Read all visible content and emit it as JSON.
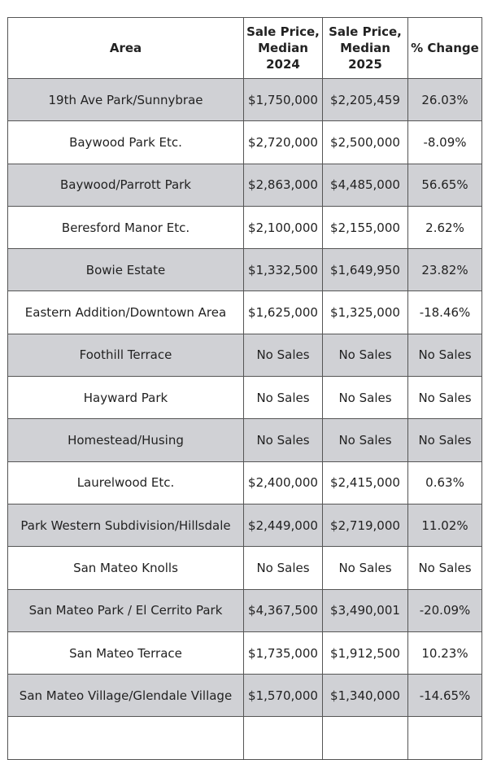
{
  "headers": [
    "Area",
    "Sale Price, Median 2024",
    "Sale Price, Median 2025",
    "% Change"
  ],
  "header_lines": [
    [
      "Area"
    ],
    [
      "Sale Price,",
      "Median",
      "2024"
    ],
    [
      "Sale Price,",
      "Median",
      "2025"
    ],
    [
      "% Change"
    ]
  ],
  "rows": [
    [
      "19th Ave Park/Sunnybrae",
      "$1,750,000",
      "$2,205,459",
      "26.03%"
    ],
    [
      "Baywood Park Etc.",
      "$2,720,000",
      "$2,500,000",
      "-8.09%"
    ],
    [
      "Baywood/Parrott Park",
      "$2,863,000",
      "$4,485,000",
      "56.65%"
    ],
    [
      "Beresford Manor Etc.",
      "$2,100,000",
      "$2,155,000",
      "2.62%"
    ],
    [
      "Bowie Estate",
      "$1,332,500",
      "$1,649,950",
      "23.82%"
    ],
    [
      "Eastern Addition/Downtown Area",
      "$1,625,000",
      "$1,325,000",
      "-18.46%"
    ],
    [
      "Foothill Terrace",
      "No Sales",
      "No Sales",
      "No Sales"
    ],
    [
      "Hayward Park",
      "No Sales",
      "No Sales",
      "No Sales"
    ],
    [
      "Homestead/Husing",
      "No Sales",
      "No Sales",
      "No Sales"
    ],
    [
      "Laurelwood Etc.",
      "$2,400,000",
      "$2,415,000",
      "0.63%"
    ],
    [
      "Park Western Subdivision/Hillsdale",
      "$2,449,000",
      "$2,719,000",
      "11.02%"
    ],
    [
      "San Mateo Knolls",
      "No Sales",
      "No Sales",
      "No Sales"
    ],
    [
      "San Mateo Park / El Cerrito Park",
      "$4,367,500",
      "$3,490,001",
      "-20.09%"
    ],
    [
      "San Mateo Terrace",
      "$1,735,000",
      "$1,912,500",
      "10.23%"
    ],
    [
      "San Mateo Village/Glendale Village",
      "$1,570,000",
      "$1,340,000",
      "-14.65%"
    ]
  ],
  "colors": {
    "shaded_row": "#d0d1d5",
    "border": "#555555"
  }
}
